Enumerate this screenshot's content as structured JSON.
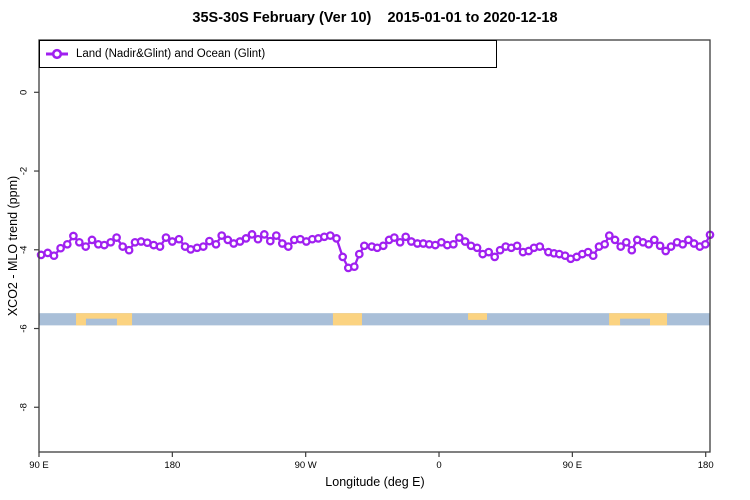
{
  "colors": {
    "series": "#A020F0",
    "ocean": "#A9BFD8",
    "land": "#FBD381",
    "axis": "#3c3c3c",
    "text": "#000000"
  },
  "chart_data": {
    "type": "line",
    "title": "35S-30S February (Ver 10)    2015-01-01 to 2020-12-18",
    "xlabel": "Longitude (deg E)",
    "ylabel": "XCO2 - MLO trend (ppm)",
    "x_domain": [
      90,
      542.9
    ],
    "y_domain": [
      -9.14,
      1.33
    ],
    "x_ticks": [
      {
        "value": 90,
        "label": "90 E"
      },
      {
        "value": 180,
        "label": "180"
      },
      {
        "value": 270,
        "label": "90 W"
      },
      {
        "value": 360,
        "label": "0"
      },
      {
        "value": 450,
        "label": "90 E"
      },
      {
        "value": 540,
        "label": "180"
      }
    ],
    "y_ticks": [
      {
        "value": 0,
        "label": "0"
      },
      {
        "value": -2,
        "label": "-2"
      },
      {
        "value": -4,
        "label": "-4"
      },
      {
        "value": -6,
        "label": "-6"
      },
      {
        "value": -8,
        "label": "-8"
      }
    ],
    "legend": {
      "position": "top-left",
      "entries": [
        {
          "label": "Land (Nadir&Glint) and Ocean (Glint)",
          "color": "#A020F0",
          "marker": "open-circle"
        }
      ]
    },
    "map_band": {
      "y_top": -5.61,
      "y_bottom": -5.92,
      "land_patches": [
        {
          "from": 115.0,
          "to": 152.8,
          "bite_from": 121.7,
          "bite_to": 142.6
        },
        {
          "from": 288.4,
          "to": 308.0
        },
        {
          "from": 379.6,
          "to": 392.4,
          "top_half": true
        },
        {
          "from": 474.8,
          "to": 513.9,
          "bite_from": 482.2,
          "bite_to": 502.4
        }
      ]
    },
    "series": [
      {
        "name": "Land (Nadir&Glint) and Ocean (Glint)",
        "x": [
          91.4,
          95.9,
          100.1,
          104.6,
          109.1,
          113.2,
          117.2,
          121.5,
          125.8,
          130.0,
          134.1,
          138.4,
          142.4,
          146.5,
          150.8,
          154.8,
          158.9,
          163.1,
          167.4,
          171.7,
          175.7,
          180.0,
          184.5,
          188.6,
          192.4,
          196.7,
          200.9,
          205.0,
          209.5,
          213.3,
          217.4,
          221.4,
          225.7,
          229.7,
          233.8,
          237.8,
          242.1,
          246.1,
          250.2,
          254.2,
          258.3,
          262.3,
          266.4,
          270.4,
          274.5,
          278.5,
          282.6,
          286.6,
          290.8,
          295.0,
          298.8,
          302.8,
          306.2,
          309.6,
          314.6,
          318.3,
          322.4,
          326.3,
          329.8,
          333.7,
          337.5,
          341.3,
          345.4,
          349.4,
          353.4,
          357.5,
          361.6,
          365.6,
          369.7,
          373.7,
          377.6,
          381.6,
          385.7,
          389.5,
          393.5,
          397.6,
          401.2,
          405.0,
          408.8,
          412.7,
          416.7,
          420.5,
          424.1,
          428.0,
          433.8,
          437.6,
          441.2,
          445.1,
          448.9,
          452.9,
          456.7,
          460.6,
          464.1,
          468.0,
          471.8,
          474.9,
          478.8,
          482.6,
          486.4,
          490.1,
          493.8,
          497.7,
          501.5,
          505.3,
          509.2,
          513.0,
          516.6,
          520.7,
          524.5,
          528.3,
          532.1,
          536.0,
          539.7,
          542.9
        ],
        "y": [
          -4.13,
          -4.08,
          -4.15,
          -3.96,
          -3.86,
          -3.65,
          -3.81,
          -3.92,
          -3.75,
          -3.86,
          -3.88,
          -3.81,
          -3.69,
          -3.92,
          -4.01,
          -3.81,
          -3.79,
          -3.82,
          -3.88,
          -3.92,
          -3.69,
          -3.79,
          -3.73,
          -3.92,
          -3.99,
          -3.95,
          -3.92,
          -3.78,
          -3.86,
          -3.64,
          -3.75,
          -3.84,
          -3.79,
          -3.71,
          -3.61,
          -3.73,
          -3.61,
          -3.78,
          -3.64,
          -3.84,
          -3.92,
          -3.75,
          -3.73,
          -3.79,
          -3.73,
          -3.71,
          -3.67,
          -3.64,
          -3.71,
          -4.18,
          -4.46,
          -4.43,
          -4.11,
          -3.9,
          -3.92,
          -3.95,
          -3.9,
          -3.75,
          -3.69,
          -3.81,
          -3.67,
          -3.79,
          -3.84,
          -3.84,
          -3.86,
          -3.88,
          -3.81,
          -3.88,
          -3.86,
          -3.69,
          -3.79,
          -3.9,
          -3.95,
          -4.11,
          -4.06,
          -4.18,
          -4.01,
          -3.92,
          -3.95,
          -3.9,
          -4.06,
          -4.03,
          -3.95,
          -3.92,
          -4.06,
          -4.09,
          -4.11,
          -4.15,
          -4.23,
          -4.18,
          -4.11,
          -4.06,
          -4.15,
          -3.92,
          -3.86,
          -3.64,
          -3.75,
          -3.92,
          -3.81,
          -4.01,
          -3.75,
          -3.81,
          -3.86,
          -3.75,
          -3.9,
          -4.03,
          -3.92,
          -3.81,
          -3.86,
          -3.75,
          -3.84,
          -3.92,
          -3.86,
          -3.62
        ]
      }
    ]
  }
}
